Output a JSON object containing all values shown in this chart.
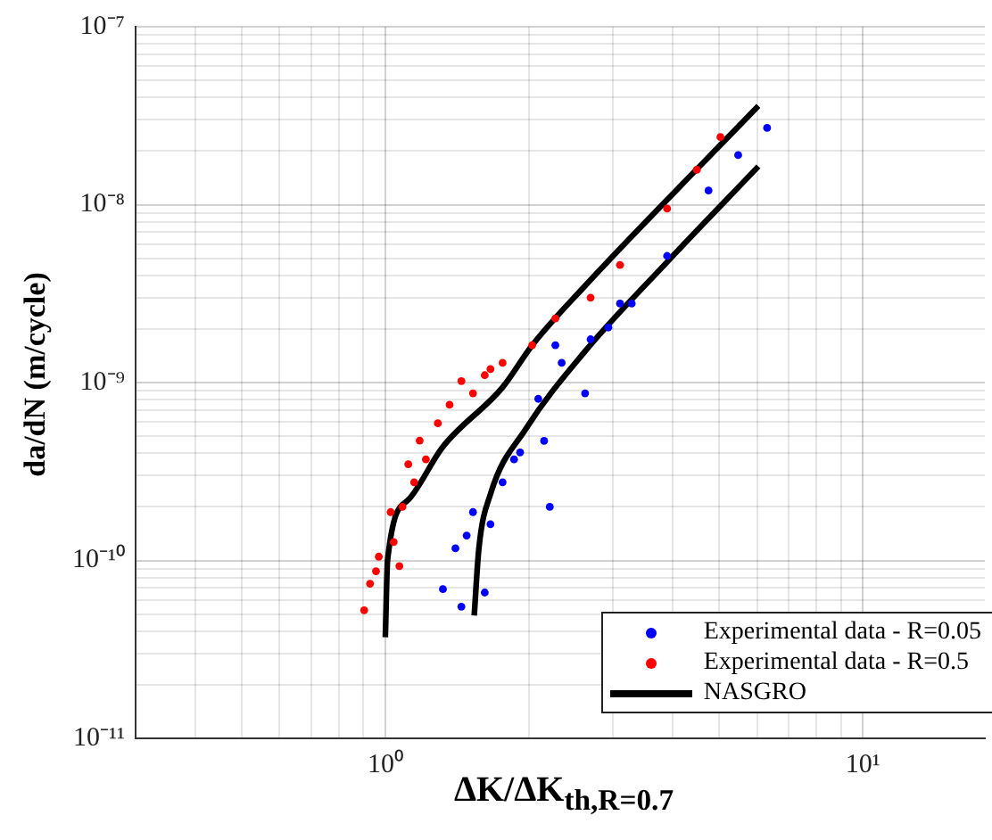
{
  "chart_data": {
    "type": "scatter",
    "xlabel": "ΔK/ΔK$_{th,R=0.7}$",
    "ylabel": "da/dN (m/cycle)",
    "log": "xy",
    "grid": true,
    "legend": "bottom right",
    "marker": "circle",
    "xlim": [
      0.3,
      18
    ],
    "ylim": [
      1e-11,
      1e-07
    ],
    "xticks": [
      {
        "value": 0.3,
        "label": null
      },
      {
        "value": 0.4,
        "label": null
      },
      {
        "value": 0.5,
        "label": null
      },
      {
        "value": 0.6,
        "label": null
      },
      {
        "value": 0.7,
        "label": null
      },
      {
        "value": 0.8,
        "label": null
      },
      {
        "value": 0.9,
        "label": null
      },
      {
        "value": 1,
        "label": "10⁰"
      },
      {
        "value": 2,
        "label": null
      },
      {
        "value": 3,
        "label": null
      },
      {
        "value": 4,
        "label": null
      },
      {
        "value": 5,
        "label": null
      },
      {
        "value": 6,
        "label": null
      },
      {
        "value": 7,
        "label": null
      },
      {
        "value": 8,
        "label": null
      },
      {
        "value": 9,
        "label": null
      },
      {
        "value": 10,
        "label": "10¹"
      }
    ],
    "yticks": [
      {
        "value": 1e-11,
        "label": "10⁻¹¹"
      },
      {
        "value": 2e-11,
        "label": null
      },
      {
        "value": 3e-11,
        "label": null
      },
      {
        "value": 4e-11,
        "label": null
      },
      {
        "value": 5e-11,
        "label": null
      },
      {
        "value": 6e-11,
        "label": null
      },
      {
        "value": 7e-11,
        "label": null
      },
      {
        "value": 8e-11,
        "label": null
      },
      {
        "value": 9e-11,
        "label": null
      },
      {
        "value": 1e-10,
        "label": "10⁻¹⁰"
      },
      {
        "value": 2e-10,
        "label": null
      },
      {
        "value": 3e-10,
        "label": null
      },
      {
        "value": 4e-10,
        "label": null
      },
      {
        "value": 5e-10,
        "label": null
      },
      {
        "value": 6e-10,
        "label": null
      },
      {
        "value": 7e-10,
        "label": null
      },
      {
        "value": 8e-10,
        "label": null
      },
      {
        "value": 9e-10,
        "label": null
      },
      {
        "value": 1e-09,
        "label": "10⁻⁹"
      },
      {
        "value": 2e-09,
        "label": null
      },
      {
        "value": 3e-09,
        "label": null
      },
      {
        "value": 4e-09,
        "label": null
      },
      {
        "value": 5e-09,
        "label": null
      },
      {
        "value": 6e-09,
        "label": null
      },
      {
        "value": 7e-09,
        "label": null
      },
      {
        "value": 8e-09,
        "label": null
      },
      {
        "value": 9e-09,
        "label": null
      },
      {
        "value": 1e-08,
        "label": "10⁻⁸"
      },
      {
        "value": 2e-08,
        "label": null
      },
      {
        "value": 3e-08,
        "label": null
      },
      {
        "value": 4e-08,
        "label": null
      },
      {
        "value": 5e-08,
        "label": null
      },
      {
        "value": 6e-08,
        "label": null
      },
      {
        "value": 7e-08,
        "label": null
      },
      {
        "value": 8e-08,
        "label": null
      },
      {
        "value": 9e-08,
        "label": null
      },
      {
        "value": 1e-07,
        "label": "10⁻⁷"
      }
    ],
    "series": [
      {
        "name": "Experimental data - R=0.05",
        "color": "#0000ff",
        "type": "scatter",
        "x": [
          1.32,
          1.443,
          1.402,
          1.48,
          1.526,
          1.615,
          1.66,
          1.76,
          1.86,
          1.915,
          2.09,
          2.15,
          2.21,
          2.27,
          2.34,
          2.62,
          2.69,
          2.93,
          3.1,
          3.28,
          3.89,
          4.75,
          5.48,
          6.3
        ],
        "values": [
          6.9e-11,
          5.5e-11,
          1.17e-10,
          1.38e-10,
          1.87e-10,
          6.6e-11,
          1.6e-10,
          2.75e-10,
          3.7e-10,
          4.05e-10,
          8.1e-10,
          4.7e-10,
          2e-10,
          1.62e-09,
          1.29e-09,
          8.7e-10,
          1.75e-09,
          2.04e-09,
          2.78e-09,
          2.78e-09,
          5.15e-09,
          1.2e-08,
          1.9e-08,
          2.7e-08
        ]
      },
      {
        "name": "Experimental data - R=0.5",
        "color": "#ff0000",
        "type": "scatter",
        "x": [
          0.903,
          0.929,
          0.956,
          0.969,
          1.026,
          1.041,
          1.07,
          1.086,
          1.117,
          1.149,
          1.18,
          1.216,
          1.288,
          1.363,
          1.443,
          1.526,
          1.615,
          1.66,
          1.76,
          2.03,
          2.27,
          2.69,
          3.1,
          3.89,
          4.49,
          5.03
        ],
        "values": [
          5.25e-11,
          7.4e-11,
          8.7e-11,
          1.05e-10,
          1.87e-10,
          1.27e-10,
          9.3e-11,
          2e-10,
          3.47e-10,
          2.75e-10,
          4.72e-10,
          3.7e-10,
          5.9e-10,
          7.5e-10,
          1.02e-09,
          8.7e-10,
          1.1e-09,
          1.19e-09,
          1.29e-09,
          1.62e-09,
          2.29e-09,
          3e-09,
          4.58e-09,
          9.5e-09,
          1.57e-08,
          2.4e-08
        ]
      },
      {
        "name": "NASGRO",
        "color": "#000000",
        "type": "line",
        "marker": "none",
        "x": [
          1.0,
          1.011,
          1.117,
          1.32,
          1.76,
          2.03,
          2.62,
          6.04
        ],
        "values": [
          3.7e-11,
          1.01e-10,
          2.19e-10,
          4.36e-10,
          9.4e-10,
          1.62e-09,
          3.5e-09,
          3.59e-08
        ]
      },
      {
        "color": "#000000",
        "type": "line",
        "marker": "none",
        "x": [
          1.535,
          1.57,
          1.66,
          1.97,
          2.62,
          3.89,
          6.04
        ],
        "values": [
          4.9e-11,
          1.17e-10,
          2.36e-10,
          5.5e-10,
          1.5e-09,
          4.76e-09,
          1.64e-08
        ]
      }
    ]
  }
}
